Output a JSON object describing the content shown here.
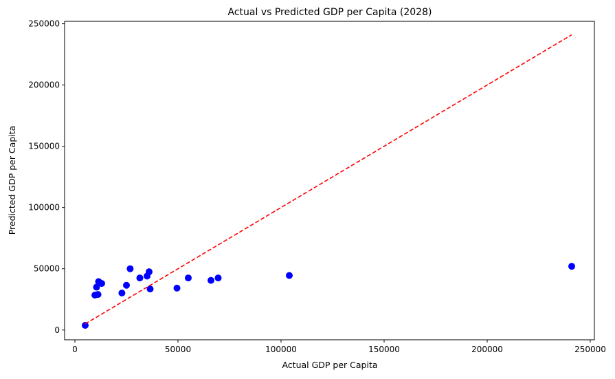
{
  "chart_data": {
    "type": "scatter",
    "title": "Actual vs Predicted GDP per Capita (2028)",
    "xlabel": "Actual GDP per Capita",
    "ylabel": "Predicted GDP per Capita",
    "xlim": [
      -5000,
      252000
    ],
    "ylim": [
      -8000,
      252000
    ],
    "xticks": [
      0,
      50000,
      100000,
      150000,
      200000,
      250000
    ],
    "xtick_labels": [
      "0",
      "50000",
      "100000",
      "150000",
      "200000",
      "250000"
    ],
    "yticks": [
      0,
      50000,
      100000,
      150000,
      200000,
      250000
    ],
    "ytick_labels": [
      "0",
      "50000",
      "100000",
      "150000",
      "200000",
      "250000"
    ],
    "grid": false,
    "points": [
      {
        "x": 5000,
        "y": 3800
      },
      {
        "x": 9700,
        "y": 28500
      },
      {
        "x": 10500,
        "y": 35000
      },
      {
        "x": 11200,
        "y": 29000
      },
      {
        "x": 11500,
        "y": 39500
      },
      {
        "x": 13000,
        "y": 38000
      },
      {
        "x": 22800,
        "y": 30200
      },
      {
        "x": 25000,
        "y": 36500
      },
      {
        "x": 26800,
        "y": 50000
      },
      {
        "x": 31500,
        "y": 42500
      },
      {
        "x": 35000,
        "y": 44000
      },
      {
        "x": 36000,
        "y": 47500
      },
      {
        "x": 36500,
        "y": 33500
      },
      {
        "x": 49500,
        "y": 34200
      },
      {
        "x": 55000,
        "y": 42500
      },
      {
        "x": 66000,
        "y": 40500
      },
      {
        "x": 69500,
        "y": 42500
      },
      {
        "x": 104000,
        "y": 44500
      },
      {
        "x": 241000,
        "y": 52000
      }
    ],
    "reference_line": {
      "x": [
        5000,
        241000
      ],
      "y": [
        5000,
        241000
      ],
      "style": "dashed"
    },
    "colors": {
      "points": "#0000ff",
      "reference_line": "#ff0000",
      "axes": "#000000"
    }
  }
}
